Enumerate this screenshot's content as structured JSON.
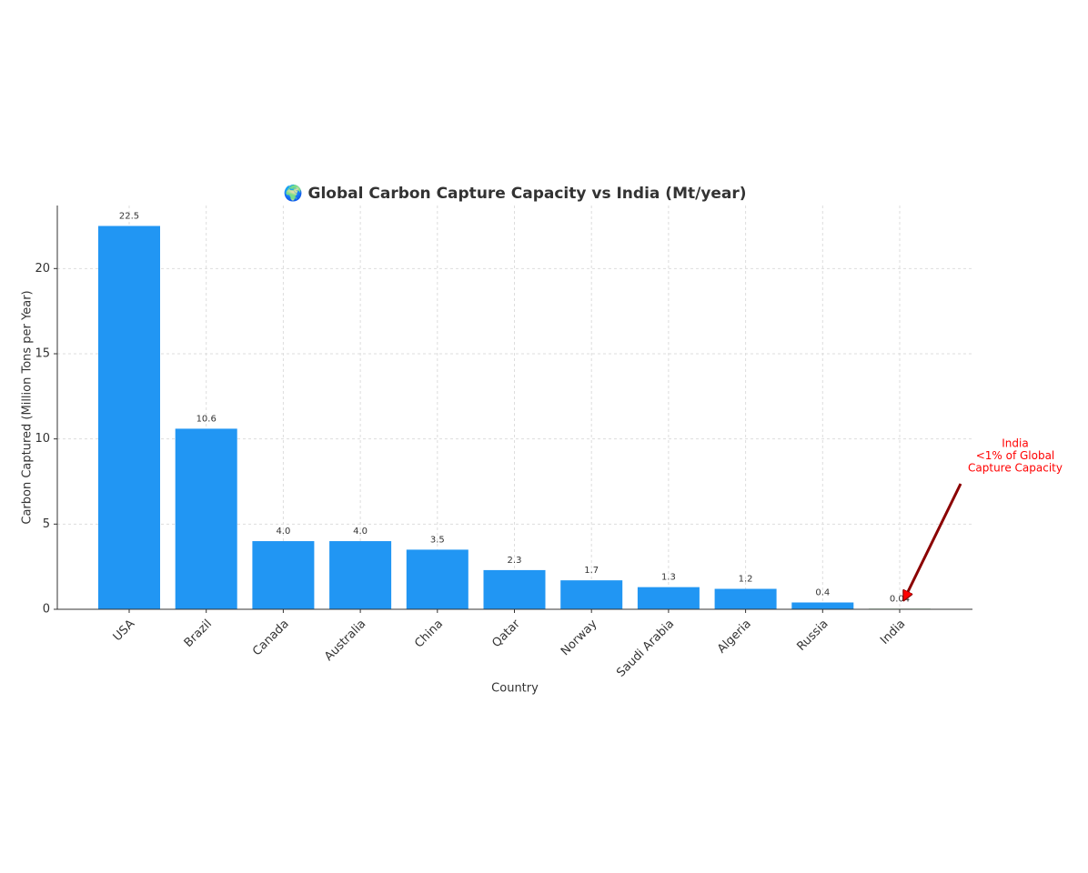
{
  "chart_data": {
    "type": "bar",
    "title": "🌍 Global Carbon Capture Capacity vs India (Mt/year)",
    "x_label": "Country",
    "y_label": "Carbon Captured (Million Tons per Year)",
    "categories": [
      "USA",
      "Brazil",
      "Canada",
      "Australia",
      "China",
      "Qatar",
      "Norway",
      "Saudi Arabia",
      "Algeria",
      "Russia",
      "India"
    ],
    "values": [
      22.5,
      10.6,
      4.0,
      4.0,
      3.5,
      2.3,
      1.7,
      1.3,
      1.2,
      0.4,
      0.04
    ],
    "value_labels": [
      "22.5",
      "10.6",
      "4.0",
      "4.0",
      "3.5",
      "2.3",
      "1.7",
      "1.3",
      "1.2",
      "0.4",
      "0.04"
    ],
    "colors": [
      "#2196f3",
      "#2196f3",
      "#2196f3",
      "#2196f3",
      "#2196f3",
      "#2196f3",
      "#2196f3",
      "#2196f3",
      "#2196f3",
      "#2196f3",
      "#a5d6a7"
    ],
    "ylim": [
      0,
      23.7
    ],
    "yticks": [
      0,
      5,
      10,
      15,
      20
    ],
    "grid": true,
    "annotation": {
      "lines": [
        "India",
        "<1% of Global",
        "Capture Capacity"
      ],
      "color": "#ff0000",
      "arrow_color": "#8b0000"
    }
  }
}
